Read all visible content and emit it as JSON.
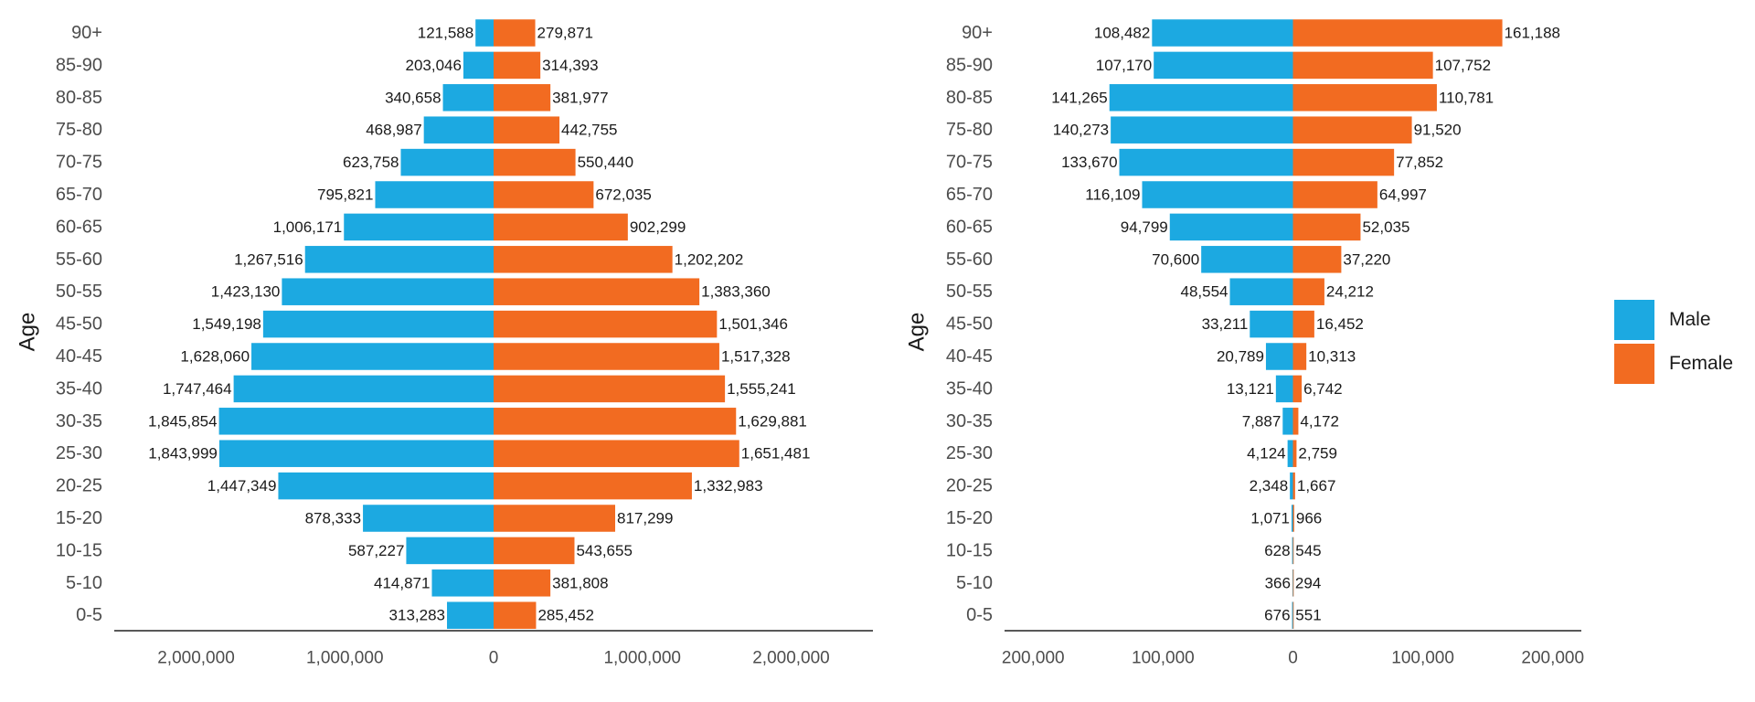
{
  "colors": {
    "male": "#1ca9e1",
    "female": "#f26b21",
    "axis": "#222222"
  },
  "legend": {
    "items": [
      {
        "label": "Male",
        "color": "#1ca9e1"
      },
      {
        "label": "Female",
        "color": "#f26b21"
      }
    ]
  },
  "chart_data": [
    {
      "type": "bar",
      "orientation": "horizontal-diverging",
      "ylabel": "Age",
      "categories": [
        "90+",
        "85-90",
        "80-85",
        "75-80",
        "70-75",
        "65-70",
        "60-65",
        "55-60",
        "50-55",
        "45-50",
        "40-45",
        "35-40",
        "30-35",
        "25-30",
        "20-25",
        "15-20",
        "10-15",
        "5-10",
        "0-5"
      ],
      "series": [
        {
          "name": "Male",
          "values": [
            121588,
            203046,
            340658,
            468987,
            623758,
            795821,
            1006171,
            1267516,
            1423130,
            1549198,
            1628060,
            1747464,
            1845854,
            1843999,
            1447349,
            878333,
            587227,
            414871,
            313283
          ]
        },
        {
          "name": "Female",
          "values": [
            279871,
            314393,
            381977,
            442755,
            550440,
            672035,
            902299,
            1202202,
            1383360,
            1501346,
            1517328,
            1555241,
            1629881,
            1651481,
            1332983,
            817299,
            543655,
            381808,
            285452
          ]
        }
      ],
      "xlim": [
        -2550000,
        2550000
      ],
      "xticks": [
        -2000000,
        -1000000,
        0,
        1000000,
        2000000
      ],
      "xtick_labels": [
        "2,000,000",
        "1,000,000",
        "0",
        "1,000,000",
        "2,000,000"
      ],
      "grid": false
    },
    {
      "type": "bar",
      "orientation": "horizontal-diverging",
      "ylabel": "Age",
      "categories": [
        "90+",
        "85-90",
        "80-85",
        "75-80",
        "70-75",
        "65-70",
        "60-65",
        "55-60",
        "50-55",
        "45-50",
        "40-45",
        "35-40",
        "30-35",
        "25-30",
        "20-25",
        "15-20",
        "10-15",
        "5-10",
        "0-5"
      ],
      "series": [
        {
          "name": "Male",
          "values": [
            108482,
            107170,
            141265,
            140273,
            133670,
            116109,
            94799,
            70600,
            48554,
            33211,
            20789,
            13121,
            7887,
            4124,
            2348,
            1071,
            628,
            366,
            676
          ]
        },
        {
          "name": "Female",
          "values": [
            161188,
            107752,
            110781,
            91520,
            77852,
            64997,
            52035,
            37220,
            24212,
            16452,
            10313,
            6742,
            4172,
            2759,
            1667,
            966,
            545,
            294,
            551
          ]
        }
      ],
      "xlim": [
        -222000,
        222000
      ],
      "xticks": [
        -200000,
        -100000,
        0,
        100000,
        200000
      ],
      "xtick_labels": [
        "200,000",
        "100,000",
        "0",
        "100,000",
        "200,000"
      ],
      "grid": false
    }
  ]
}
